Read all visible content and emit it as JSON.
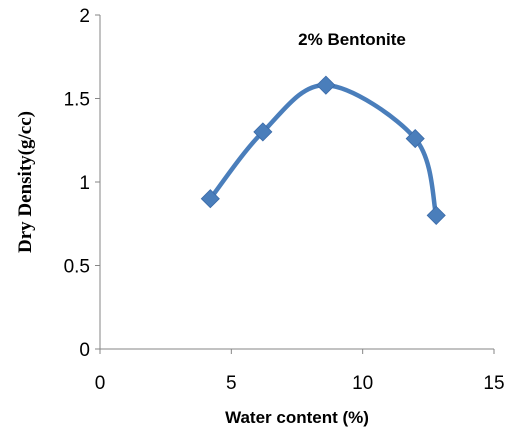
{
  "chart_data": {
    "type": "line",
    "title": "2% Bentonite",
    "xlabel": "Water content (%)",
    "ylabel": "Dry Density(g/cc)",
    "xlim": [
      0,
      15
    ],
    "ylim": [
      0,
      2
    ],
    "x_ticks": [
      0,
      5,
      10,
      15
    ],
    "y_ticks": [
      0,
      0.5,
      1,
      1.5,
      2
    ],
    "x_tick_labels": [
      "0",
      "5",
      "10",
      "15"
    ],
    "y_tick_labels": [
      "0",
      "0.5",
      "1",
      "1.5",
      "2"
    ],
    "grid": false,
    "series": [
      {
        "x": [
          4.2,
          6.2,
          8.6,
          12.0,
          12.8
        ],
        "y": [
          0.9,
          1.3,
          1.58,
          1.26,
          0.8
        ],
        "color": "#4a7ebb",
        "marker": "diamond",
        "smooth": true
      }
    ]
  }
}
